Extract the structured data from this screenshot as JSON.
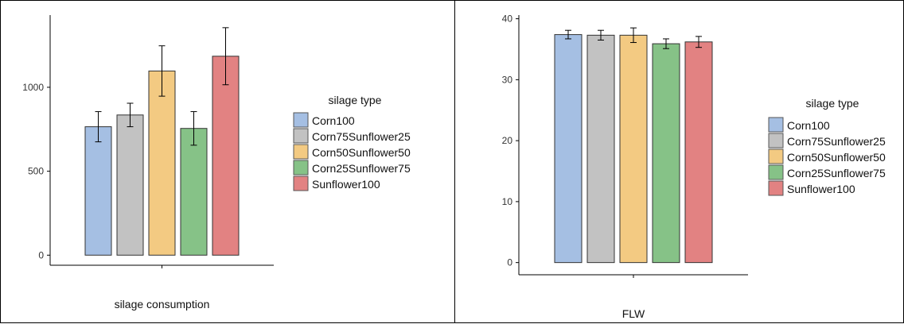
{
  "chart_data": [
    {
      "type": "bar",
      "categories": [
        "Corn100",
        "Corn75Sunflower25",
        "Corn50Sunflower50",
        "Corn25Sunflower75",
        "Sunflower100"
      ],
      "values": [
        765,
        835,
        1097,
        755,
        1185
      ],
      "error": [
        90,
        70,
        150,
        100,
        170
      ],
      "xlabel": "silage consumption",
      "ylabel": "",
      "ylim": [
        -60,
        1430
      ],
      "yticks": [
        0,
        500,
        1000
      ],
      "legend_title": "silage type",
      "legend_position": "right",
      "grid": false
    },
    {
      "type": "bar",
      "categories": [
        "Corn100",
        "Corn75Sunflower25",
        "Corn50Sunflower50",
        "Corn25Sunflower75",
        "Sunflower100"
      ],
      "values": [
        37.4,
        37.3,
        37.3,
        35.9,
        36.2
      ],
      "error": [
        0.7,
        0.8,
        1.2,
        0.8,
        0.9
      ],
      "xlabel": "FLW",
      "ylabel": "",
      "ylim": [
        -2,
        40.6
      ],
      "yticks": [
        0,
        10,
        20,
        30,
        40
      ],
      "legend_title": "silage type",
      "legend_position": "right",
      "grid": false
    }
  ],
  "colors": [
    "#a5bfe3",
    "#c2c2c2",
    "#f3ca82",
    "#86c287",
    "#e28282"
  ]
}
